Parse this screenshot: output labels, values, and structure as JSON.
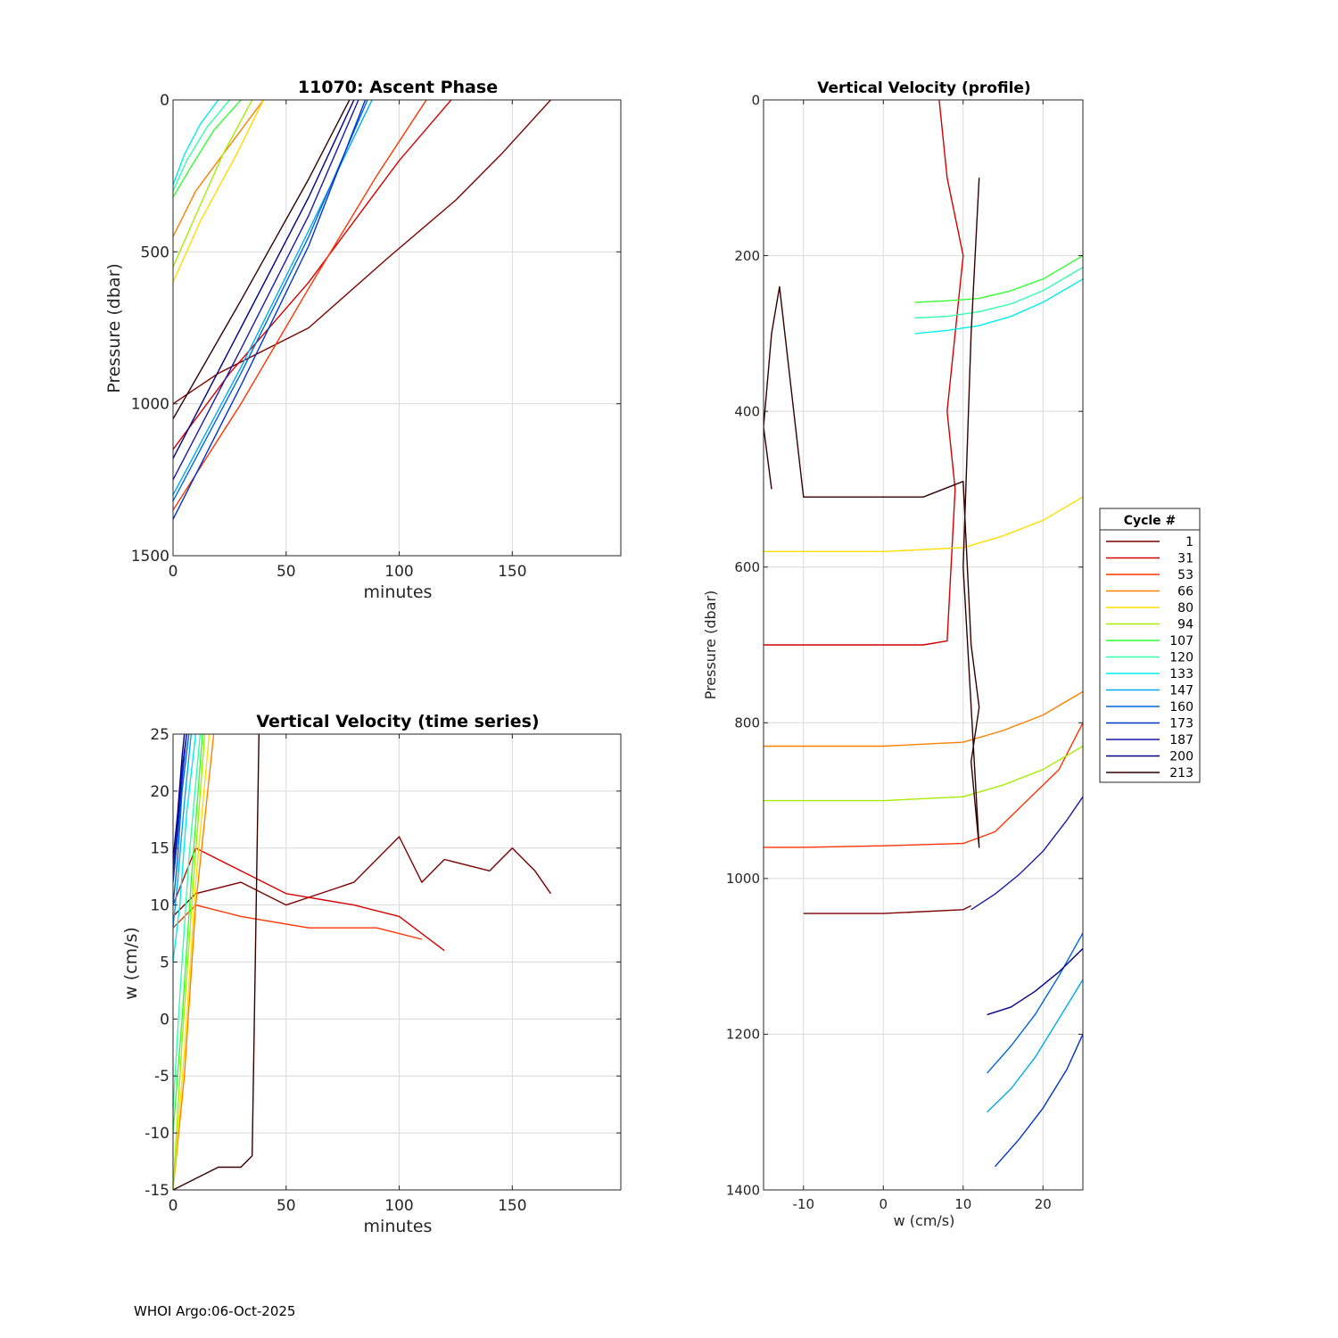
{
  "footer": "WHOI Argo:06-Oct-2025",
  "legend": {
    "title": "Cycle #",
    "items": [
      {
        "label": "1",
        "color": "#7f0000"
      },
      {
        "label": "31",
        "color": "#d40000"
      },
      {
        "label": "53",
        "color": "#ff3300"
      },
      {
        "label": "66",
        "color": "#ff8000"
      },
      {
        "label": "80",
        "color": "#ffdd00"
      },
      {
        "label": "94",
        "color": "#a5ee00"
      },
      {
        "label": "107",
        "color": "#33ff33"
      },
      {
        "label": "120",
        "color": "#33ffaa"
      },
      {
        "label": "133",
        "color": "#00eeee"
      },
      {
        "label": "147",
        "color": "#00aaee"
      },
      {
        "label": "160",
        "color": "#0066dd"
      },
      {
        "label": "173",
        "color": "#0033cc"
      },
      {
        "label": "187",
        "color": "#1a1aaa"
      },
      {
        "label": "200",
        "color": "#00008b"
      },
      {
        "label": "213",
        "color": "#330000"
      }
    ]
  },
  "chart_data": [
    {
      "id": "ascent",
      "type": "line",
      "title": "11070: Ascent Phase",
      "xlabel": "minutes",
      "ylabel": "Pressure (dbar)",
      "xlim": [
        0,
        198
      ],
      "ylim": [
        1500,
        0
      ],
      "y_reversed": true,
      "xticks": [
        0,
        50,
        100,
        150
      ],
      "yticks": [
        0,
        500,
        1000,
        1500
      ],
      "series": [
        {
          "cycle": "1",
          "color": "#7f0000",
          "x": [
            0,
            20,
            60,
            95,
            125,
            145,
            167
          ],
          "y": [
            1000,
            900,
            750,
            520,
            330,
            180,
            0
          ]
        },
        {
          "cycle": "31",
          "color": "#d40000",
          "x": [
            0,
            25,
            60,
            100,
            123
          ],
          "y": [
            1150,
            900,
            600,
            200,
            0
          ]
        },
        {
          "cycle": "53",
          "color": "#ff3300",
          "x": [
            0,
            30,
            60,
            90,
            112
          ],
          "y": [
            1350,
            1000,
            620,
            250,
            0
          ]
        },
        {
          "cycle": "66",
          "color": "#ff8000",
          "x": [
            0,
            10,
            25,
            40
          ],
          "y": [
            450,
            300,
            150,
            0
          ]
        },
        {
          "cycle": "80",
          "color": "#ffdd00",
          "x": [
            0,
            12,
            28,
            40
          ],
          "y": [
            600,
            400,
            180,
            0
          ]
        },
        {
          "cycle": "94",
          "color": "#a5ee00",
          "x": [
            0,
            10,
            22,
            35
          ],
          "y": [
            550,
            380,
            180,
            0
          ]
        },
        {
          "cycle": "107",
          "color": "#33ff33",
          "x": [
            0,
            8,
            18,
            30
          ],
          "y": [
            320,
            220,
            100,
            0
          ]
        },
        {
          "cycle": "120",
          "color": "#33ffaa",
          "x": [
            0,
            6,
            15,
            25
          ],
          "y": [
            300,
            200,
            90,
            0
          ]
        },
        {
          "cycle": "133",
          "color": "#00eeee",
          "x": [
            0,
            5,
            12,
            20
          ],
          "y": [
            280,
            180,
            80,
            0
          ]
        },
        {
          "cycle": "147",
          "color": "#00aaee",
          "x": [
            0,
            30,
            60,
            88
          ],
          "y": [
            1300,
            880,
            430,
            0
          ]
        },
        {
          "cycle": "160",
          "color": "#0066dd",
          "x": [
            0,
            30,
            60,
            86
          ],
          "y": [
            1320,
            900,
            450,
            0
          ]
        },
        {
          "cycle": "173",
          "color": "#0033cc",
          "x": [
            0,
            30,
            60,
            85
          ],
          "y": [
            1380,
            940,
            480,
            0
          ]
        },
        {
          "cycle": "187",
          "color": "#1a1aaa",
          "x": [
            0,
            30,
            60,
            82
          ],
          "y": [
            1250,
            820,
            380,
            0
          ]
        },
        {
          "cycle": "200",
          "color": "#00008b",
          "x": [
            0,
            30,
            60,
            80
          ],
          "y": [
            1180,
            750,
            320,
            0
          ]
        },
        {
          "cycle": "213",
          "color": "#330000",
          "x": [
            0,
            30,
            60,
            78
          ],
          "y": [
            1050,
            660,
            260,
            0
          ]
        }
      ]
    },
    {
      "id": "timeseries",
      "type": "line",
      "title": "Vertical Velocity (time series)",
      "xlabel": "minutes",
      "ylabel": "w (cm/s)",
      "xlim": [
        0,
        198
      ],
      "ylim": [
        -15,
        25
      ],
      "xticks": [
        0,
        50,
        100,
        150
      ],
      "yticks": [
        -15,
        -10,
        -5,
        0,
        5,
        10,
        15,
        20,
        25
      ],
      "series": [
        {
          "cycle": "1",
          "color": "#7f0000",
          "x": [
            0,
            10,
            30,
            50,
            80,
            100,
            110,
            120,
            140,
            150,
            160,
            167
          ],
          "y": [
            9,
            11,
            12,
            10,
            12,
            16,
            12,
            14,
            13,
            15,
            13,
            11
          ]
        },
        {
          "cycle": "31",
          "color": "#d40000",
          "x": [
            0,
            10,
            30,
            50,
            80,
            100,
            120
          ],
          "y": [
            10,
            15,
            13,
            11,
            10,
            9,
            6
          ]
        },
        {
          "cycle": "53",
          "color": "#ff3300",
          "x": [
            0,
            10,
            30,
            60,
            90,
            110
          ],
          "y": [
            8,
            10,
            9,
            8,
            8,
            7
          ]
        },
        {
          "cycle": "66",
          "color": "#ff8000",
          "x": [
            0,
            5,
            10,
            18
          ],
          "y": [
            -15,
            -5,
            10,
            25
          ]
        },
        {
          "cycle": "80",
          "color": "#ffdd00",
          "x": [
            0,
            5,
            10,
            16
          ],
          "y": [
            -15,
            -3,
            12,
            25
          ]
        },
        {
          "cycle": "94",
          "color": "#a5ee00",
          "x": [
            0,
            4,
            9,
            14
          ],
          "y": [
            -15,
            -2,
            12,
            25
          ]
        },
        {
          "cycle": "107",
          "color": "#33ff33",
          "x": [
            0,
            4,
            8,
            13
          ],
          "y": [
            -10,
            0,
            12,
            25
          ]
        },
        {
          "cycle": "120",
          "color": "#33ffaa",
          "x": [
            0,
            3,
            7,
            12
          ],
          "y": [
            -8,
            2,
            14,
            25
          ]
        },
        {
          "cycle": "133",
          "color": "#00eeee",
          "x": [
            0,
            3,
            6,
            10
          ],
          "y": [
            5,
            10,
            18,
            25
          ]
        },
        {
          "cycle": "147",
          "color": "#00aaee",
          "x": [
            0,
            2,
            5,
            8
          ],
          "y": [
            8,
            12,
            19,
            25
          ]
        },
        {
          "cycle": "160",
          "color": "#0066dd",
          "x": [
            0,
            2,
            4,
            7
          ],
          "y": [
            10,
            14,
            20,
            25
          ]
        },
        {
          "cycle": "173",
          "color": "#0033cc",
          "x": [
            0,
            2,
            4,
            6
          ],
          "y": [
            12,
            16,
            21,
            25
          ]
        },
        {
          "cycle": "187",
          "color": "#1a1aaa",
          "x": [
            0,
            2,
            4,
            6
          ],
          "y": [
            13,
            17,
            22,
            25
          ]
        },
        {
          "cycle": "200",
          "color": "#00008b",
          "x": [
            0,
            2,
            4,
            5
          ],
          "y": [
            14,
            18,
            23,
            25
          ]
        },
        {
          "cycle": "213",
          "color": "#330000",
          "x": [
            0,
            10,
            20,
            30,
            35,
            38
          ],
          "y": [
            -15,
            -14,
            -13,
            -13,
            -12,
            25
          ]
        }
      ]
    },
    {
      "id": "profile",
      "type": "line",
      "title": "Vertical Velocity (profile)",
      "xlabel": "w (cm/s)",
      "ylabel": "Pressure (dbar)",
      "xlim": [
        -15,
        25
      ],
      "ylim": [
        1400,
        0
      ],
      "y_reversed": true,
      "xticks": [
        -10,
        0,
        10,
        20
      ],
      "yticks": [
        0,
        200,
        400,
        600,
        800,
        1000,
        1200,
        1400
      ],
      "series": [
        {
          "cycle": "1",
          "color": "#7f0000",
          "x": [
            -10,
            0,
            10,
            11
          ],
          "y": [
            1045,
            1045,
            1040,
            1035
          ]
        },
        {
          "cycle": "31",
          "color": "#d40000",
          "x": [
            -15,
            -10,
            0,
            5,
            8,
            9,
            8,
            9,
            10,
            8,
            7
          ],
          "y": [
            700,
            700,
            700,
            700,
            695,
            500,
            400,
            300,
            200,
            100,
            0
          ]
        },
        {
          "cycle": "53",
          "color": "#ff3300",
          "x": [
            -15,
            -10,
            0,
            10,
            14,
            18,
            22,
            25
          ],
          "y": [
            960,
            960,
            958,
            955,
            940,
            900,
            860,
            800
          ]
        },
        {
          "cycle": "66",
          "color": "#ff8000",
          "x": [
            -15,
            -10,
            0,
            10,
            15,
            20,
            25
          ],
          "y": [
            830,
            830,
            830,
            825,
            810,
            790,
            760
          ]
        },
        {
          "cycle": "80",
          "color": "#ffdd00",
          "x": [
            -15,
            -10,
            0,
            10,
            15,
            20,
            25
          ],
          "y": [
            580,
            580,
            580,
            575,
            560,
            540,
            510
          ]
        },
        {
          "cycle": "94",
          "color": "#a5ee00",
          "x": [
            -15,
            -10,
            0,
            10,
            15,
            20,
            25
          ],
          "y": [
            900,
            900,
            900,
            895,
            880,
            860,
            830
          ]
        },
        {
          "cycle": "107",
          "color": "#33ff33",
          "x": [
            4,
            8,
            12,
            16,
            20,
            25
          ],
          "y": [
            260,
            258,
            255,
            245,
            230,
            200
          ]
        },
        {
          "cycle": "120",
          "color": "#33ffaa",
          "x": [
            4,
            8,
            12,
            16,
            20,
            25
          ],
          "y": [
            280,
            278,
            272,
            262,
            245,
            215
          ]
        },
        {
          "cycle": "133",
          "color": "#00eeee",
          "x": [
            4,
            8,
            12,
            16,
            20,
            25
          ],
          "y": [
            300,
            296,
            290,
            278,
            260,
            230
          ]
        },
        {
          "cycle": "147",
          "color": "#00aaee",
          "x": [
            13,
            16,
            19,
            22,
            25
          ],
          "y": [
            1300,
            1270,
            1230,
            1180,
            1130
          ]
        },
        {
          "cycle": "160",
          "color": "#0066dd",
          "x": [
            13,
            16,
            19,
            22,
            25
          ],
          "y": [
            1250,
            1215,
            1175,
            1125,
            1070
          ]
        },
        {
          "cycle": "173",
          "color": "#0033cc",
          "x": [
            14,
            17,
            20,
            23,
            25
          ],
          "y": [
            1370,
            1335,
            1295,
            1245,
            1200
          ]
        },
        {
          "cycle": "187",
          "color": "#1a1aaa",
          "x": [
            11,
            14,
            17,
            20,
            23,
            25
          ],
          "y": [
            1040,
            1020,
            995,
            965,
            925,
            895
          ]
        },
        {
          "cycle": "200",
          "color": "#00008b",
          "x": [
            13,
            16,
            19,
            22,
            25
          ],
          "y": [
            1175,
            1165,
            1145,
            1120,
            1090
          ]
        },
        {
          "cycle": "213",
          "color": "#330000",
          "x": [
            -14,
            -15,
            -14,
            -13,
            -10,
            0,
            5,
            10,
            11,
            12,
            11,
            12,
            10,
            11,
            12
          ],
          "y": [
            500,
            420,
            300,
            240,
            510,
            510,
            510,
            490,
            700,
            780,
            850,
            960,
            600,
            300,
            100
          ]
        }
      ]
    }
  ]
}
